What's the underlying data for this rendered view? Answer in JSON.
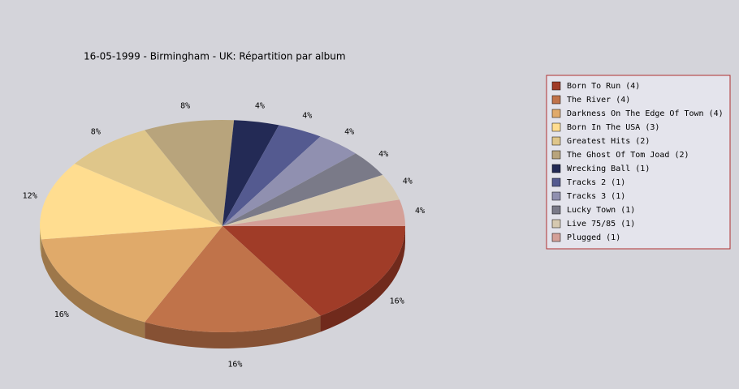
{
  "chart_data": {
    "type": "pie",
    "title": "16-05-1999 - Birmingham - UK:  Répartition par album",
    "categories": [
      "Born To Run (4)",
      "The River (4)",
      "Darkness On The Edge Of Town (4)",
      "Born In The USA (3)",
      "Greatest Hits (2)",
      "The Ghost Of Tom Joad (2)",
      "Wrecking Ball (1)",
      "Tracks 2 (1)",
      "Tracks 3 (1)",
      "Lucky Town (1)",
      "Live 75/85 (1)",
      "Plugged (1)"
    ],
    "values": [
      16,
      16,
      16,
      12,
      8,
      8,
      4,
      4,
      4,
      4,
      4,
      4
    ],
    "value_labels": [
      "16%",
      "16%",
      "16%",
      "12%",
      "8%",
      "8%",
      "4%",
      "4%",
      "4%",
      "4%",
      "4%",
      "4%"
    ],
    "colors": [
      "#a03c28",
      "#c0734a",
      "#e0aa6a",
      "#ffdd90",
      "#dfc68a",
      "#b8a47c",
      "#232a55",
      "#545a90",
      "#9090b0",
      "#7a7a88",
      "#d6c9b0",
      "#d4a098"
    ],
    "legend": "right"
  }
}
